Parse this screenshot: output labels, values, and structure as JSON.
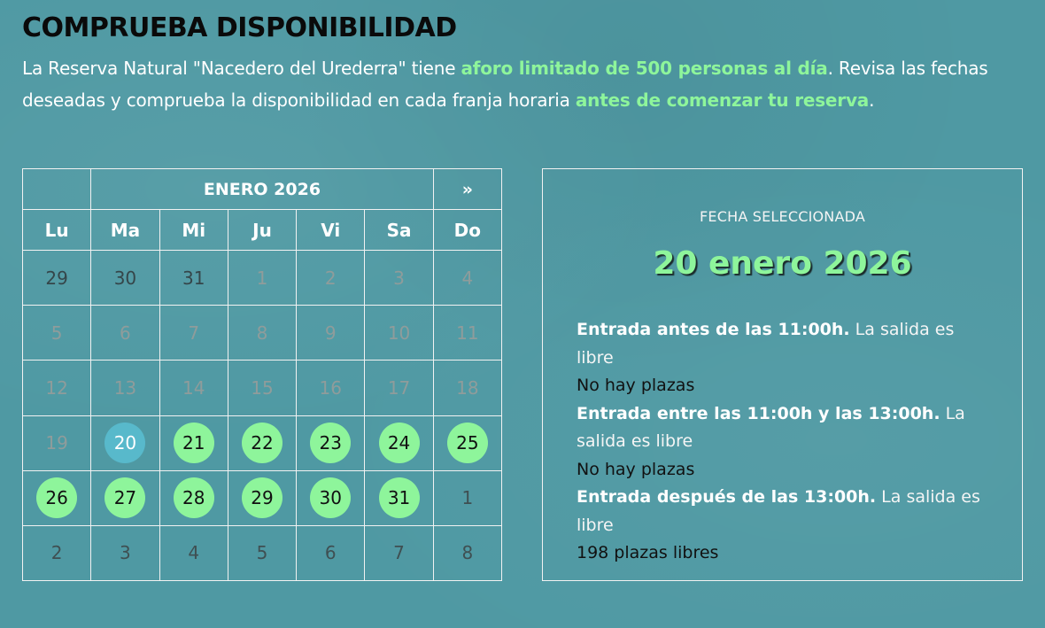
{
  "header": {
    "title": "COMPRUEBA DISPONIBILIDAD",
    "intro": {
      "part1": "La Reserva Natural \"Nacedero del Urederra\" tiene ",
      "hl1": "aforo limitado de 500 personas al día",
      "part2": ". Revisa las fechas deseadas y comprueba la disponibilidad en cada franja horaria ",
      "hl2": "antes de comenzar tu reserva",
      "part3": "."
    }
  },
  "calendar": {
    "month_title": "ENERO 2026",
    "prev_label": "",
    "next_label": "»",
    "day_names": [
      "Lu",
      "Ma",
      "Mi",
      "Ju",
      "Vi",
      "Sa",
      "Do"
    ],
    "weeks": [
      [
        {
          "d": "29",
          "s": "outside"
        },
        {
          "d": "30",
          "s": "outside"
        },
        {
          "d": "31",
          "s": "outside"
        },
        {
          "d": "1",
          "s": "past"
        },
        {
          "d": "2",
          "s": "past"
        },
        {
          "d": "3",
          "s": "past"
        },
        {
          "d": "4",
          "s": "past"
        }
      ],
      [
        {
          "d": "5",
          "s": "past"
        },
        {
          "d": "6",
          "s": "past"
        },
        {
          "d": "7",
          "s": "past"
        },
        {
          "d": "8",
          "s": "past"
        },
        {
          "d": "9",
          "s": "past"
        },
        {
          "d": "10",
          "s": "past"
        },
        {
          "d": "11",
          "s": "past"
        }
      ],
      [
        {
          "d": "12",
          "s": "past"
        },
        {
          "d": "13",
          "s": "past"
        },
        {
          "d": "14",
          "s": "past"
        },
        {
          "d": "15",
          "s": "past"
        },
        {
          "d": "16",
          "s": "past"
        },
        {
          "d": "17",
          "s": "past"
        },
        {
          "d": "18",
          "s": "past"
        }
      ],
      [
        {
          "d": "19",
          "s": "past"
        },
        {
          "d": "20",
          "s": "selected"
        },
        {
          "d": "21",
          "s": "avail"
        },
        {
          "d": "22",
          "s": "avail"
        },
        {
          "d": "23",
          "s": "avail"
        },
        {
          "d": "24",
          "s": "avail"
        },
        {
          "d": "25",
          "s": "avail"
        }
      ],
      [
        {
          "d": "26",
          "s": "avail"
        },
        {
          "d": "27",
          "s": "avail"
        },
        {
          "d": "28",
          "s": "avail"
        },
        {
          "d": "29",
          "s": "avail"
        },
        {
          "d": "30",
          "s": "avail"
        },
        {
          "d": "31",
          "s": "avail"
        },
        {
          "d": "1",
          "s": "next"
        }
      ],
      [
        {
          "d": "2",
          "s": "next"
        },
        {
          "d": "3",
          "s": "next"
        },
        {
          "d": "4",
          "s": "next"
        },
        {
          "d": "5",
          "s": "next"
        },
        {
          "d": "6",
          "s": "next"
        },
        {
          "d": "7",
          "s": "next"
        },
        {
          "d": "8",
          "s": "next"
        }
      ]
    ]
  },
  "selection": {
    "label": "FECHA SELECCIONADA",
    "date": "20 enero 2026",
    "slots": [
      {
        "title": "Entrada antes de las 11:00h.",
        "note": " La salida es libre",
        "availability": "No hay plazas"
      },
      {
        "title": "Entrada entre las 11:00h y las 13:00h.",
        "note": " La salida es libre",
        "availability": "No hay plazas"
      },
      {
        "title": "Entrada después de las 13:00h.",
        "note": " La salida es libre",
        "availability": "198 plazas libres"
      }
    ]
  },
  "colors": {
    "background": "#4f99a3",
    "accent_green": "#8ef59b",
    "selected_blue": "#58b9cb",
    "title": "#0a0a0a"
  }
}
